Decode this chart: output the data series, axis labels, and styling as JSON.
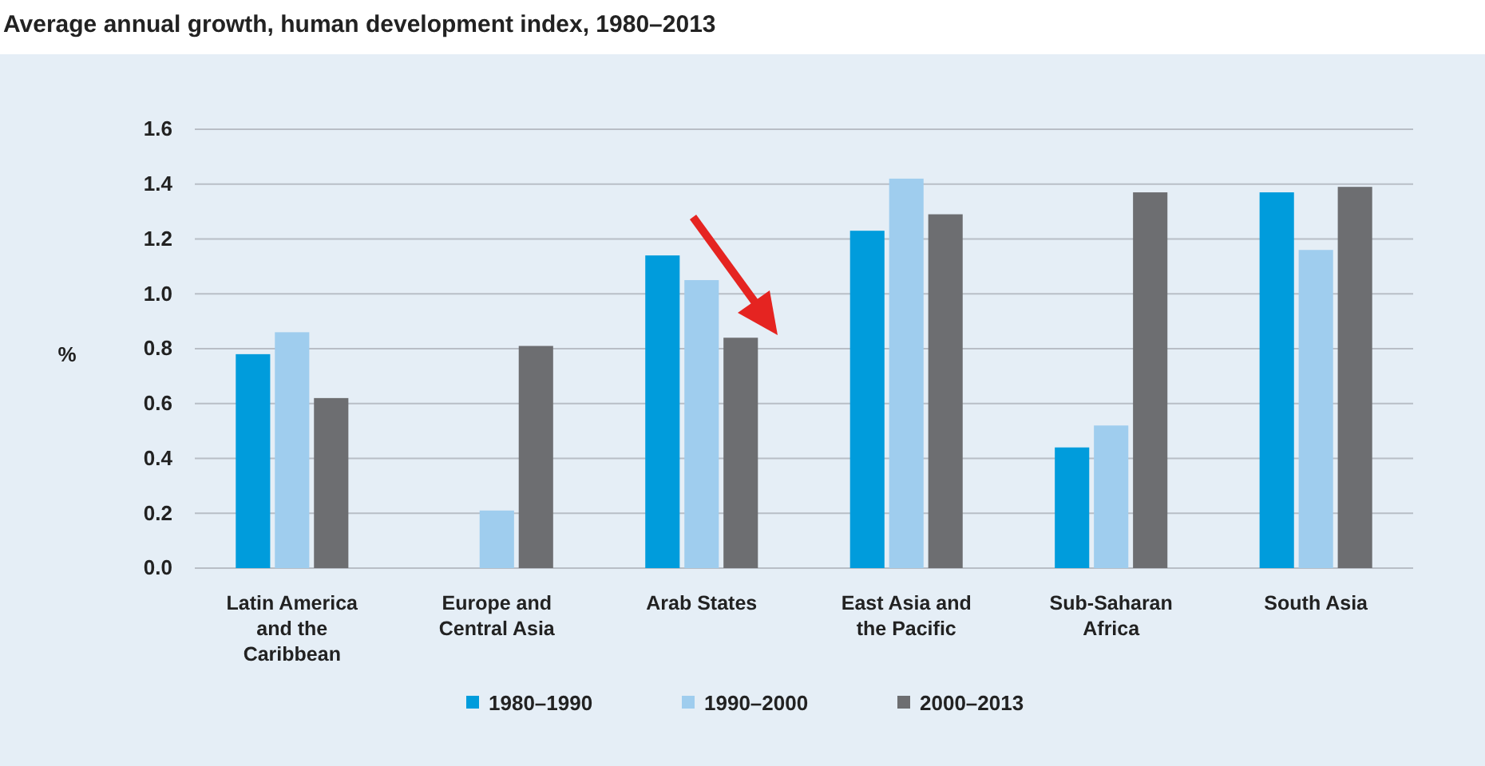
{
  "chart_data": {
    "type": "bar",
    "title": "Average annual growth, human development index, 1980–2013",
    "ylabel": "%",
    "categories": [
      "Latin America and the Caribbean",
      "Europe and Central Asia",
      "Arab States",
      "East Asia and the Pacific",
      "Sub-Saharan Africa",
      "South Asia"
    ],
    "series": [
      {
        "name": "1980–1990",
        "color": "#009cdc",
        "values": [
          0.78,
          null,
          1.14,
          1.23,
          0.44,
          1.37
        ]
      },
      {
        "name": "1990–2000",
        "color": "#9fcdee",
        "values": [
          0.86,
          0.21,
          1.05,
          1.42,
          0.52,
          1.16
        ]
      },
      {
        "name": "2000–2013",
        "color": "#6d6e71",
        "values": [
          0.62,
          0.81,
          0.84,
          1.29,
          1.37,
          1.39
        ]
      }
    ],
    "ylim": [
      0,
      1.6
    ],
    "yticks": [
      {
        "value": 0,
        "label": "0.0"
      },
      {
        "value": 0.2,
        "label": "0.2"
      },
      {
        "value": 0.4,
        "label": "0.4"
      },
      {
        "value": 0.6,
        "label": "0.6"
      },
      {
        "value": 0.8,
        "label": "0.8"
      },
      {
        "value": 1.0,
        "label": "1.0"
      },
      {
        "value": 1.2,
        "label": "1.2"
      },
      {
        "value": 1.4,
        "label": "1.4"
      },
      {
        "value": 1.6,
        "label": "1.6"
      }
    ],
    "grid": "y",
    "legend": "bottom"
  }
}
